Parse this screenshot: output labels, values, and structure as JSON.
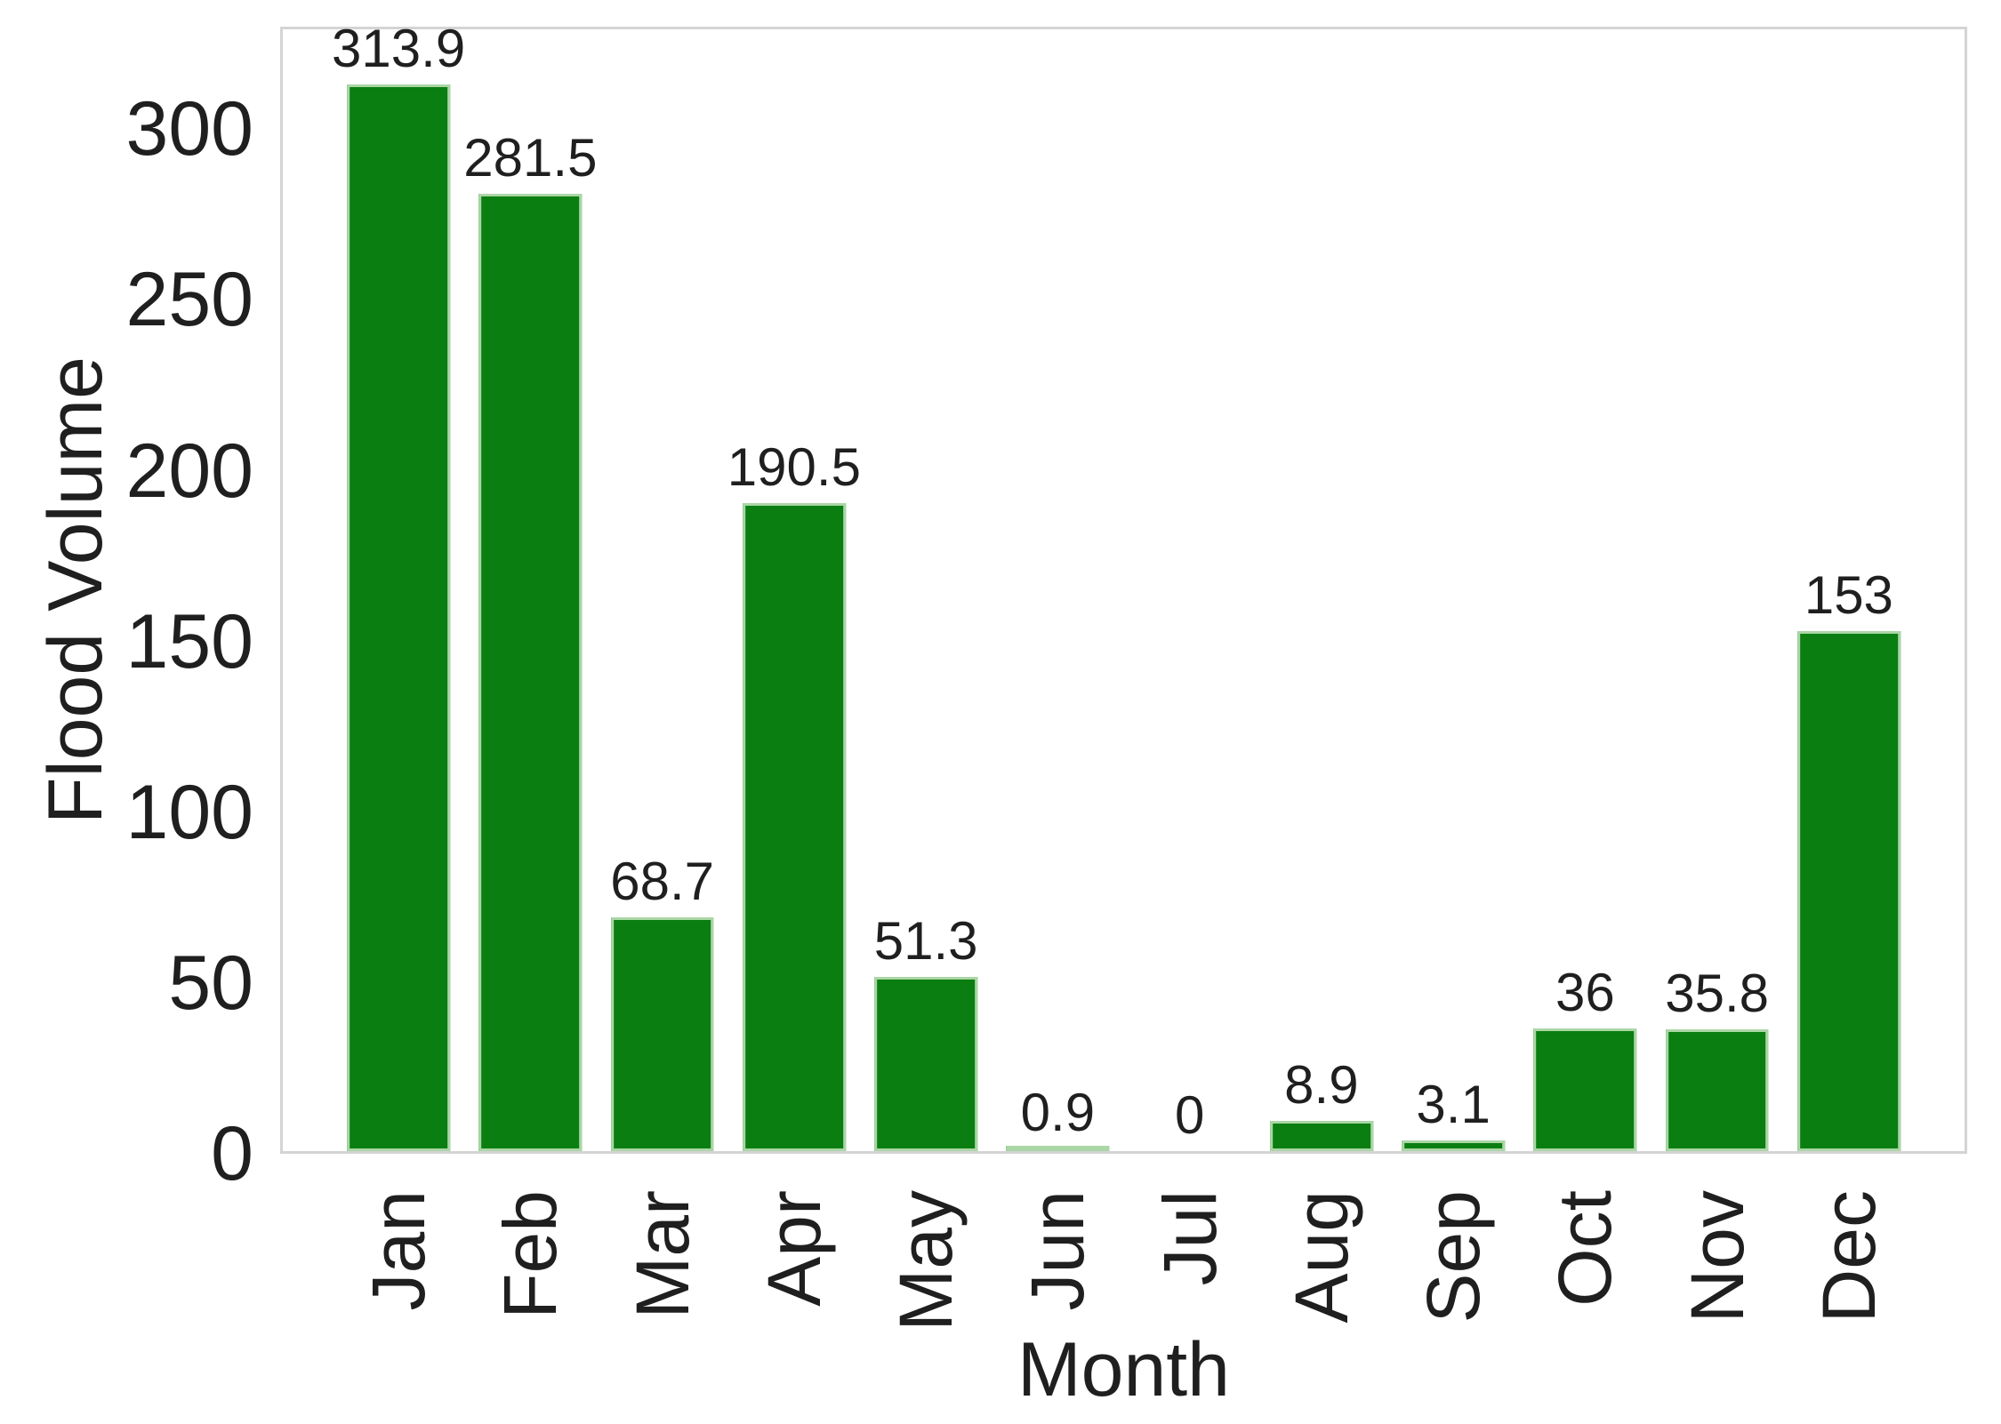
{
  "chart_data": {
    "type": "bar",
    "title": "",
    "xlabel": "Month",
    "ylabel": "Flood Volume",
    "categories": [
      "Jan",
      "Feb",
      "Mar",
      "Apr",
      "May",
      "Jun",
      "Jul",
      "Aug",
      "Sep",
      "Oct",
      "Nov",
      "Dec"
    ],
    "values": [
      313.9,
      281.5,
      68.7,
      190.5,
      51.3,
      0.9,
      0,
      8.9,
      3.1,
      36,
      35.8,
      153
    ],
    "value_labels": [
      "313.9",
      "281.5",
      "68.7",
      "190.5",
      "51.3",
      "0.9",
      "0",
      "8.9",
      "3.1",
      "36",
      "35.8",
      "153"
    ],
    "yticks": [
      0,
      50,
      100,
      150,
      200,
      250,
      300
    ],
    "ylim": [
      0,
      330
    ],
    "grid": false,
    "legend": null,
    "xtick_rotation_degrees": 90,
    "colors": {
      "bar_fill": "#0a7e11",
      "bar_edge": "#abd6a6",
      "spine": "#d4d4d4",
      "text": "#1f1f1f",
      "background": "#ffffff"
    }
  }
}
